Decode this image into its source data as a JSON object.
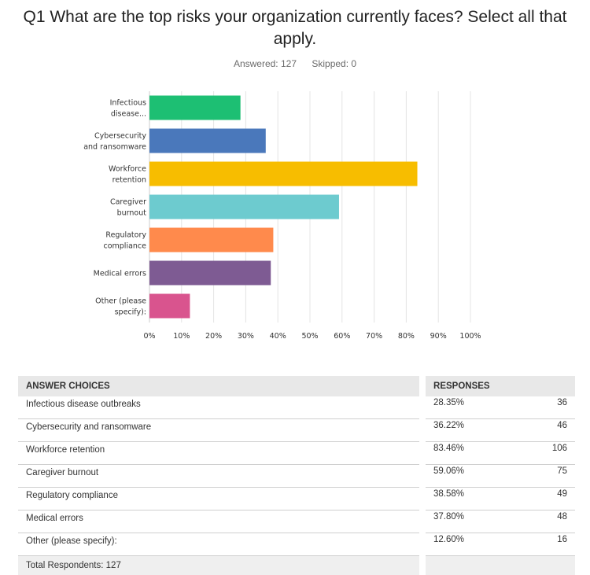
{
  "question": {
    "title": "Q1 What are the top risks your organization currently faces? Select all that apply.",
    "answered_label": "Answered: 127",
    "skipped_label": "Skipped: 0"
  },
  "chart_data": {
    "type": "bar",
    "orientation": "horizontal",
    "categories": [
      "Infectious disease...",
      "Cybersecurity and ransomware",
      "Workforce retention",
      "Caregiver burnout",
      "Regulatory compliance",
      "Medical errors",
      "Other (please specify):"
    ],
    "category_label_lines": [
      [
        "Infectious",
        "disease..."
      ],
      [
        "Cybersecurity",
        "and ransomware"
      ],
      [
        "Workforce",
        "retention"
      ],
      [
        "Caregiver",
        "burnout"
      ],
      [
        "Regulatory",
        "compliance"
      ],
      [
        "Medical errors"
      ],
      [
        "Other (please",
        "specify):"
      ]
    ],
    "values": [
      28.35,
      36.22,
      83.46,
      59.06,
      38.58,
      37.8,
      12.6
    ],
    "colors": [
      "#1dbf73",
      "#4a78bb",
      "#f7bd00",
      "#6dcbcf",
      "#ff8a4c",
      "#7e5b93",
      "#d9548e"
    ],
    "xlim": [
      0,
      100
    ],
    "ticks": [
      "0%",
      "10%",
      "20%",
      "30%",
      "40%",
      "50%",
      "60%",
      "70%",
      "80%",
      "90%",
      "100%"
    ],
    "grid": true,
    "title": "",
    "xlabel": "",
    "ylabel": ""
  },
  "table": {
    "headers": {
      "choice": "ANSWER CHOICES",
      "responses": "RESPONSES"
    },
    "rows": [
      {
        "choice": "Infectious disease outbreaks",
        "percent": "28.35%",
        "count": "36"
      },
      {
        "choice": "Cybersecurity and ransomware",
        "percent": "36.22%",
        "count": "46"
      },
      {
        "choice": "Workforce retention",
        "percent": "83.46%",
        "count": "106"
      },
      {
        "choice": "Caregiver burnout",
        "percent": "59.06%",
        "count": "75"
      },
      {
        "choice": "Regulatory compliance",
        "percent": "38.58%",
        "count": "49"
      },
      {
        "choice": "Medical errors",
        "percent": "37.80%",
        "count": "48"
      },
      {
        "choice": "Other (please specify):",
        "percent": "12.60%",
        "count": "16"
      }
    ],
    "total": "Total Respondents: 127"
  }
}
